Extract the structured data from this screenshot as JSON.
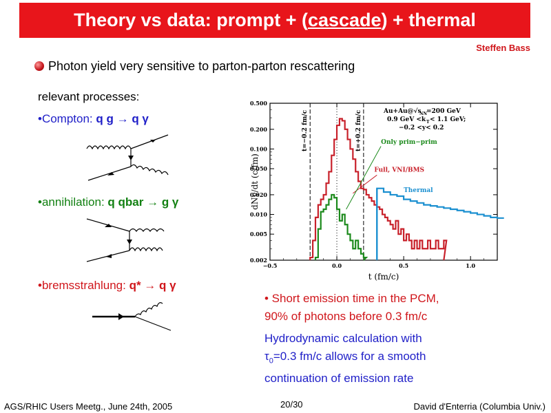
{
  "title": {
    "pre": "Theory vs data: prompt + (",
    "under": "cascade",
    "post": ") + thermal"
  },
  "author": "Steffen Bass",
  "main_bullet": "Photon yield very sensitive to parton-parton rescattering",
  "processes": {
    "heading": "relevant processes:",
    "compton_label": "•Compton: ",
    "compton_formula": "q g → q γ",
    "annih_label": "•annihilation: ",
    "annih_formula": "q qbar →  g γ",
    "brems_label": "•bremsstrahlung: ",
    "brems_formula": "q* → q γ"
  },
  "notes": {
    "line1": "• Short emission time in the PCM,",
    "line2": "90% of photons before 0.3 fm/c",
    "arrow": "",
    "line3": " Hydrodynamic calculation with",
    "tau": "τ",
    "tau_sub": "0",
    "line4": "=0.3 fm/c allows for a smooth",
    "line5": "continuation of emission rate"
  },
  "footer": {
    "left": "AGS/RHIC Users Meetg., June 24th, 2005",
    "page": "20/30",
    "right": "David d'Enterria (Columbia Univ.)"
  },
  "chart_data": {
    "type": "line",
    "xlabel": "t (fm/c)",
    "ylabel": "dNγ/dt (c/fm)",
    "xlim": [
      -0.5,
      1.2
    ],
    "ylim": [
      0.002,
      0.5
    ],
    "yscale": "log",
    "xticks": [
      "−0.5",
      "0.0",
      "0.5",
      "1.0"
    ],
    "yticks": [
      "0.002",
      "0.005",
      "0.010",
      "0.020",
      "0.050",
      "0.100",
      "0.200",
      "0.500"
    ],
    "annotation": {
      "line1": "Au+Au@√s",
      "sub": "NN",
      "line1b": "=200 GeV",
      "line2": "0.9 GeV <k",
      "sub2": "T",
      "line2b": "< 1.1 GeV;",
      "line3": "−0.2 <y< 0.2"
    },
    "vlines": [
      {
        "x": -0.2,
        "label": "t=−0.2 fm/c"
      },
      {
        "x": 0.2,
        "label": "t=+0.2 fm/c"
      }
    ],
    "series": [
      {
        "name": "Full, VNI/BMS",
        "color": "#c8202a",
        "x": [
          -0.2,
          -0.18,
          -0.16,
          -0.14,
          -0.12,
          -0.1,
          -0.08,
          -0.06,
          -0.04,
          -0.02,
          0.0,
          0.02,
          0.04,
          0.06,
          0.08,
          0.1,
          0.12,
          0.14,
          0.16,
          0.18,
          0.2,
          0.22,
          0.24,
          0.26,
          0.28,
          0.3,
          0.32,
          0.34,
          0.36,
          0.38,
          0.4,
          0.42,
          0.44,
          0.46,
          0.48,
          0.5,
          0.52,
          0.54,
          0.56,
          0.58,
          0.6,
          0.62,
          0.64,
          0.66,
          0.68,
          0.7,
          0.72,
          0.74,
          0.76,
          0.78,
          0.8
        ],
        "y": [
          0.0022,
          0.004,
          0.009,
          0.014,
          0.017,
          0.02,
          0.03,
          0.045,
          0.08,
          0.14,
          0.23,
          0.29,
          0.27,
          0.2,
          0.14,
          0.1,
          0.07,
          0.045,
          0.032,
          0.025,
          0.024,
          0.02,
          0.018,
          0.016,
          0.014,
          0.013,
          0.012,
          0.01,
          0.009,
          0.008,
          0.007,
          0.006,
          0.008,
          0.005,
          0.006,
          0.004,
          0.005,
          0.004,
          0.003,
          0.004,
          0.003,
          0.004,
          0.003,
          0.003,
          0.004,
          0.003,
          0.003,
          0.004,
          0.003,
          0.003,
          0.004
        ]
      },
      {
        "name": "Only prim−prim",
        "color": "#1c8a1c",
        "x": [
          -0.16,
          -0.14,
          -0.12,
          -0.1,
          -0.08,
          -0.06,
          -0.04,
          -0.02,
          0.0,
          0.02,
          0.04,
          0.06,
          0.08,
          0.1,
          0.12,
          0.14,
          0.16,
          0.18,
          0.2
        ],
        "y": [
          0.0022,
          0.006,
          0.011,
          0.012,
          0.014,
          0.017,
          0.02,
          0.018,
          0.012,
          0.008,
          0.01,
          0.007,
          0.005,
          0.004,
          0.003,
          0.004,
          0.003,
          0.0025,
          0.0022
        ]
      },
      {
        "name": "Thermal",
        "color": "#1a8fd0",
        "x": [
          0.3,
          0.35,
          0.4,
          0.45,
          0.5,
          0.55,
          0.6,
          0.65,
          0.7,
          0.75,
          0.8,
          0.85,
          0.9,
          0.95,
          1.0,
          1.05,
          1.1,
          1.15,
          1.2
        ],
        "y": [
          0.025,
          0.022,
          0.02,
          0.019,
          0.017,
          0.016,
          0.015,
          0.014,
          0.0135,
          0.013,
          0.0125,
          0.012,
          0.0115,
          0.011,
          0.0105,
          0.01,
          0.0095,
          0.009,
          0.0088
        ]
      }
    ]
  }
}
